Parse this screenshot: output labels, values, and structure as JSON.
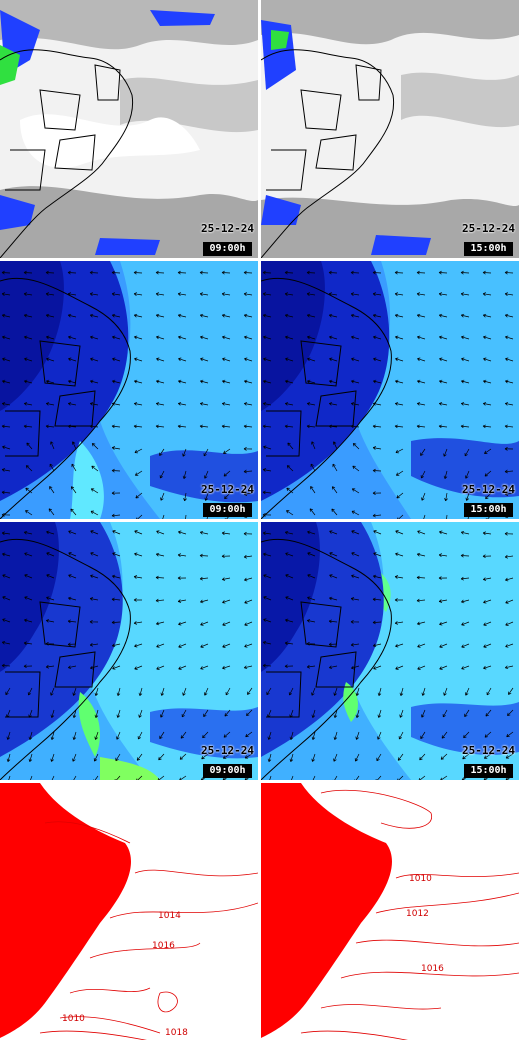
{
  "panels": [
    {
      "row": "satellite",
      "date": "25-12-24",
      "time": "09:00h"
    },
    {
      "row": "satellite",
      "date": "25-12-24",
      "time": "15:00h"
    },
    {
      "row": "wind-upper",
      "date": "25-12-24",
      "time": "09:00h"
    },
    {
      "row": "wind-upper",
      "date": "25-12-24",
      "time": "15:00h"
    },
    {
      "row": "wind-lower",
      "date": "25-12-24",
      "time": "09:00h"
    },
    {
      "row": "wind-lower",
      "date": "25-12-24",
      "time": "15:00h"
    },
    {
      "row": "pressure",
      "date": "",
      "time": ""
    },
    {
      "row": "pressure",
      "date": "",
      "time": ""
    }
  ],
  "pressure_labels": {
    "left": [
      "1014",
      "1016",
      "1010",
      "1018"
    ],
    "right": [
      "1010",
      "1012",
      "1016"
    ]
  },
  "colors": {
    "cloud": "#d8d8d8",
    "cloud_dense": "#ffffff",
    "precip_blue": "#1030ff",
    "precip_green": "#40ff40",
    "wind_dark": "#0010a0",
    "wind_mid": "#2060ff",
    "wind_light": "#40b8ff",
    "wind_green": "#50ff80",
    "isobar": "#e00000",
    "border": "#000000"
  }
}
